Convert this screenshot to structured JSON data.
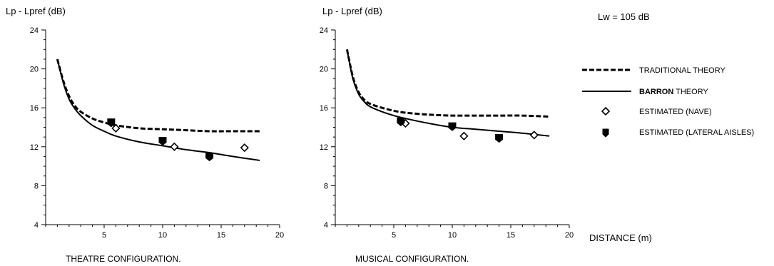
{
  "figure": {
    "annotation": "Lw = 105 dB",
    "legend": {
      "placement": "right",
      "items": [
        {
          "key": "traditional",
          "label": "TRADITIONAL THEORY",
          "symbol": "dashed-line"
        },
        {
          "key": "barron",
          "label_bold": "BARRON",
          "label_rest": " THEORY",
          "symbol": "solid-line"
        },
        {
          "key": "nave",
          "label": "ESTIMATED  (NAVE)",
          "symbol": "open-marker"
        },
        {
          "key": "lateral",
          "label": "ESTIMATED  (LATERAL AISLES)",
          "symbol": "filled-marker"
        }
      ]
    },
    "shared_x_label": "DISTANCE (m)",
    "colors": {
      "line": "#000000",
      "background": "#ffffff"
    }
  },
  "chart_data": [
    {
      "type": "line",
      "title": "THEATRE CONFIGURATION.",
      "ylabel": "Lp - Lpref (dB)",
      "xlabel": "",
      "xlim": [
        0,
        20
      ],
      "ylim": [
        4,
        24
      ],
      "x_ticks": [
        5,
        10,
        15,
        20
      ],
      "y_ticks": [
        4,
        8,
        12,
        16,
        20,
        24
      ],
      "grid": false,
      "series": [
        {
          "name": "TRADITIONAL THEORY",
          "kind": "line",
          "style": "dashed",
          "x": [
            1,
            1.5,
            2,
            2.5,
            3,
            4,
            5,
            6,
            8,
            10,
            12,
            14,
            16,
            18.3
          ],
          "y": [
            21,
            18.8,
            17.2,
            16.2,
            15.6,
            14.9,
            14.5,
            14.2,
            13.9,
            13.8,
            13.7,
            13.6,
            13.6,
            13.6
          ]
        },
        {
          "name": "BARRON THEORY",
          "kind": "line",
          "style": "solid",
          "x": [
            1,
            1.5,
            2,
            2.5,
            3,
            4,
            5,
            6,
            8,
            10,
            12,
            14,
            16,
            18.3
          ],
          "y": [
            21,
            18.6,
            16.9,
            15.9,
            15.2,
            14.2,
            13.6,
            13.1,
            12.5,
            12.1,
            11.7,
            11.4,
            11.0,
            10.6
          ]
        },
        {
          "name": "ESTIMATED  (NAVE)",
          "kind": "scatter",
          "marker": "open",
          "x": [
            6,
            11,
            17
          ],
          "y": [
            13.9,
            12.0,
            11.9
          ]
        },
        {
          "name": "ESTIMATED  (LATERAL AISLES)",
          "kind": "scatter",
          "marker": "filled",
          "x": [
            5.6,
            10,
            14
          ],
          "y": [
            14.5,
            12.6,
            11.0
          ]
        }
      ]
    },
    {
      "type": "line",
      "title": "MUSICAL  CONFIGURATION.",
      "ylabel": "Lp - Lpref (dB)",
      "xlabel": "",
      "xlim": [
        0,
        20
      ],
      "ylim": [
        4,
        24
      ],
      "x_ticks": [
        5,
        10,
        15,
        20
      ],
      "y_ticks": [
        4,
        8,
        12,
        16,
        20,
        24
      ],
      "grid": false,
      "series": [
        {
          "name": "TRADITIONAL THEORY",
          "kind": "line",
          "style": "dashed",
          "x": [
            1,
            1.5,
            2,
            2.5,
            3,
            4,
            5,
            6,
            8,
            10,
            12,
            14,
            16,
            18.3
          ],
          "y": [
            22,
            19.2,
            17.6,
            16.8,
            16.4,
            16.0,
            15.7,
            15.5,
            15.3,
            15.2,
            15.2,
            15.2,
            15.2,
            15.1
          ]
        },
        {
          "name": "BARRON THEORY",
          "kind": "line",
          "style": "solid",
          "x": [
            1,
            1.5,
            2,
            2.5,
            3,
            4,
            5,
            6,
            8,
            10,
            12,
            14,
            16,
            18.3
          ],
          "y": [
            22,
            19.0,
            17.4,
            16.6,
            16.1,
            15.6,
            15.2,
            14.9,
            14.4,
            14.0,
            13.8,
            13.6,
            13.4,
            13.1
          ]
        },
        {
          "name": "ESTIMATED  (NAVE)",
          "kind": "scatter",
          "marker": "open",
          "x": [
            6,
            11,
            17
          ],
          "y": [
            14.4,
            13.1,
            13.2
          ]
        },
        {
          "name": "ESTIMATED  (LATERAL AISLES)",
          "kind": "scatter",
          "marker": "filled",
          "x": [
            5.6,
            10,
            14
          ],
          "y": [
            14.6,
            14.1,
            12.9
          ]
        }
      ]
    }
  ]
}
